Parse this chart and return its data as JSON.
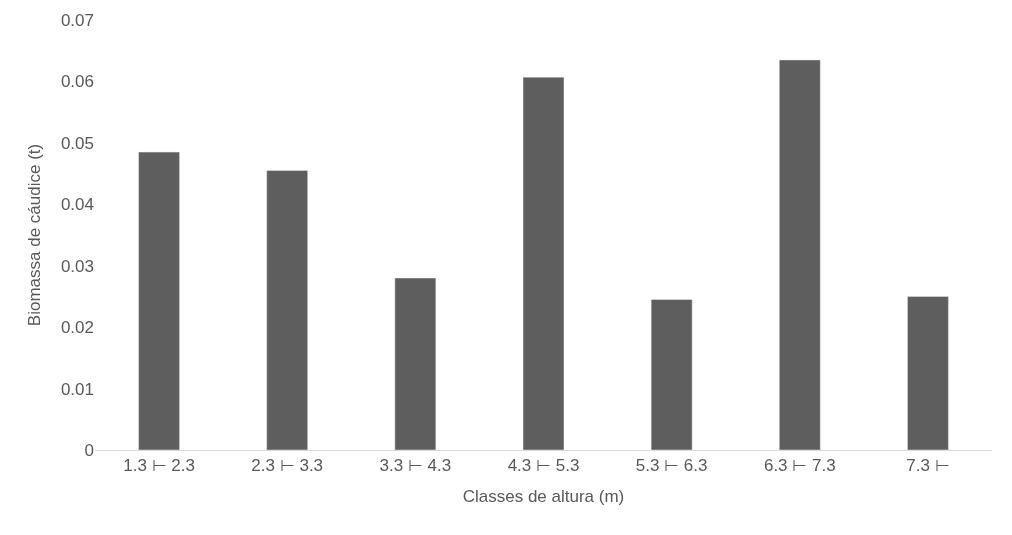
{
  "chart_data": {
    "type": "bar",
    "xlabel": "Classes de altura (m)",
    "ylabel": "Biomassa de cáudice (t)",
    "categories": [
      "1.3 ⊢ 2.3",
      "2.3 ⊢ 3.3",
      "3.3 ⊢ 4.3",
      "4.3 ⊢ 5.3",
      "5.3 ⊢ 6.3",
      "6.3 ⊢ 7.3",
      "7.3 ⊢"
    ],
    "values": [
      0.0485,
      0.0455,
      0.028,
      0.0607,
      0.0245,
      0.0635,
      0.025
    ],
    "color": "#5e5e5e",
    "ylim": [
      0,
      0.07
    ],
    "yticks": [
      0,
      0.01,
      0.02,
      0.03,
      0.04,
      0.05,
      0.06,
      0.07
    ]
  }
}
